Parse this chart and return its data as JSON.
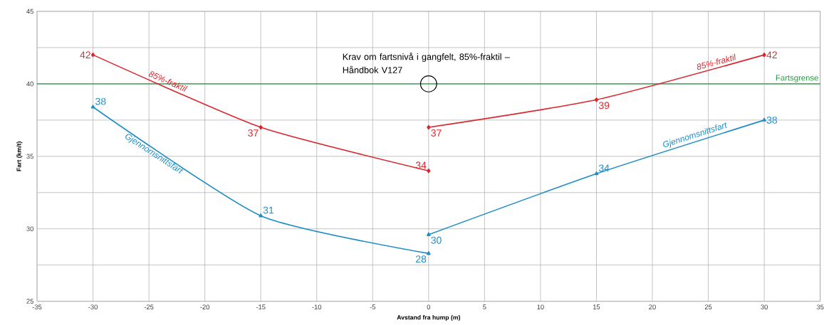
{
  "chart_data": {
    "type": "line",
    "xlabel": "Avstand fra hump (m)",
    "ylabel": "Fart (km/t)",
    "xlim": [
      -35,
      35
    ],
    "ylim": [
      25,
      45
    ],
    "xticks": [
      -35,
      -30,
      -25,
      -20,
      -15,
      -10,
      -5,
      0,
      5,
      10,
      15,
      20,
      25,
      30,
      35
    ],
    "yticks": [
      25,
      {
        "value": 27.5,
        "label": null
      },
      30,
      {
        "value": 32.5,
        "label": null
      },
      35,
      {
        "value": 37.5,
        "label": null
      },
      40,
      {
        "value": 42.5,
        "label": null
      },
      45
    ],
    "grid": true,
    "line_style": "solid",
    "series": [
      {
        "name": "85%-fraktil",
        "color": "#d9262e",
        "marker": "diamond",
        "x": [
          -30,
          -15,
          0
        ],
        "values": [
          42,
          37,
          34
        ],
        "value_labels": [
          "42",
          "37",
          "34"
        ]
      },
      {
        "name": "Gjennomsnittsfart",
        "color": "#1f8ec4",
        "marker": "triangle",
        "x": [
          -30,
          -15,
          0
        ],
        "values": [
          38.4,
          30.9,
          28.3
        ],
        "value_labels": [
          "38",
          "31",
          "28"
        ]
      },
      {
        "name": "85%-fraktil",
        "color": "#d9262e",
        "marker": "diamond",
        "x": [
          0,
          15,
          30
        ],
        "values": [
          37,
          38.9,
          42
        ],
        "value_labels": [
          "37",
          "39",
          "42"
        ]
      },
      {
        "name": "Gjennomsnittsfart",
        "color": "#1f8ec4",
        "marker": "triangle",
        "x": [
          0,
          15,
          30
        ],
        "values": [
          29.6,
          33.8,
          37.5
        ],
        "value_labels": [
          "30",
          "34",
          "38"
        ]
      }
    ],
    "ref_lines": [
      {
        "axis": "y",
        "value": 40,
        "label": "Fartsgrense",
        "color": "#1e9a3c",
        "line_style": "solid"
      }
    ],
    "annotations": [
      {
        "text": "Krav om fartsnivå i gangfelt, 85%-fraktil – Håndbok V127",
        "x": 0,
        "y": 40
      }
    ]
  }
}
